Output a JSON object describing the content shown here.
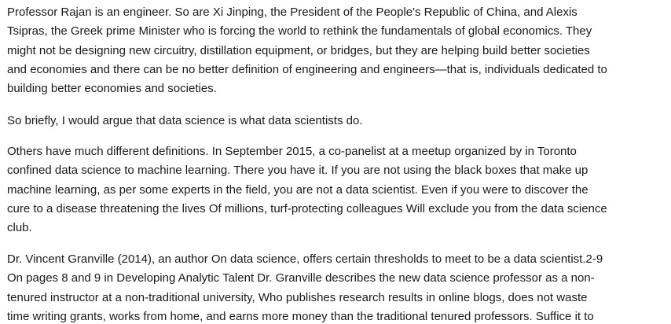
{
  "paragraphs": [
    {
      "lines": [
        "Professor Rajan is an engineer. So are Xi Jinping, the President of the People's Republic of China, and Alexis",
        "Tsipras, the Greek prime Minister who is forcing the world to rethink the fundamentals of global economics. They",
        "might not be designing new circuitry, distillation equipment, or bridges, but they are helping build better societies",
        "and economies and there can be no better definition of engineering and engineers—that is, individuals dedicated to",
        "building better economies and societies."
      ]
    },
    {
      "lines": [
        "So briefly, I would argue that data science is what data scientists do."
      ]
    },
    {
      "lines": [
        "Others have much different definitions. In September 2015, a co-panelist at a meetup organized by in Toronto",
        "confined data science to machine learning. There you have it. If you are not using the black boxes that make up",
        "machine learning, as per some experts in the field, you are not a data scientist. Even if you were to discover the",
        "cure to a disease threatening the lives Of millions, turf-protecting colleagues Will exclude you from the data science",
        "club."
      ]
    },
    {
      "lines": [
        "Dr. Vincent Granville (2014), an author On data science, offers certain thresholds to meet to be a data scientist.2-9",
        "On pages 8 and 9 in Developing Analytic Talent Dr. Granville describes the new data science professor as a non-",
        "tenured instructor at a non-traditional university, Who publishes research results in online blogs, does not waste",
        "time writing grants, works from home, and earns more money than the traditional tenured professors. Suffice it to"
      ]
    }
  ]
}
